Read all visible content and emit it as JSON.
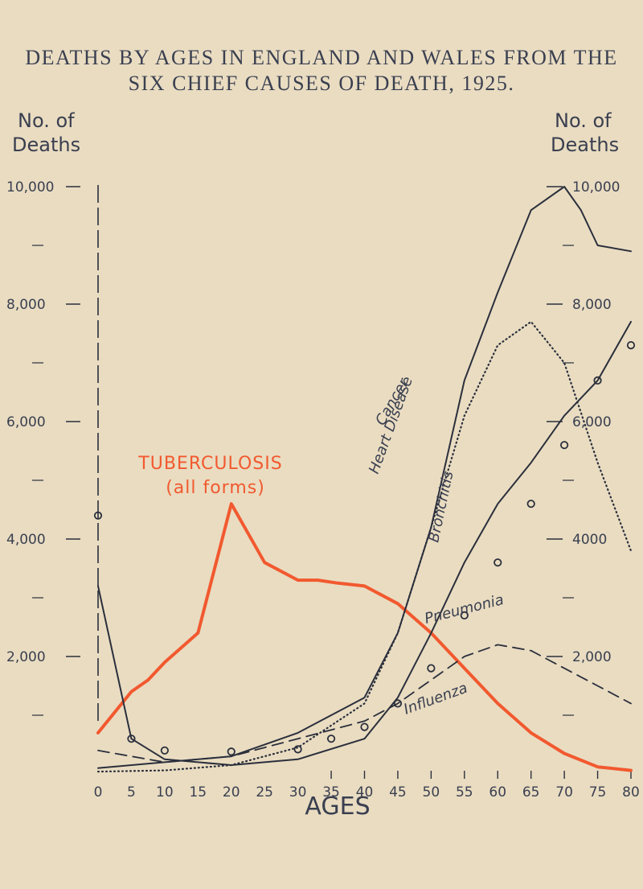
{
  "chart_data": {
    "type": "line",
    "title": "DEATHS BY AGES IN ENGLAND AND WALES FROM THE",
    "subtitle": "SIX CHIEF CAUSES OF DEATH, 1925.",
    "ylabel_left": [
      "No. of",
      "Deaths"
    ],
    "ylabel_right": [
      "No. of",
      "Deaths"
    ],
    "xlabel": "AGES",
    "x_ticks": [
      "0",
      "5",
      "10",
      "15",
      "20",
      "25",
      "30",
      "35",
      "40",
      "45",
      "50",
      "55",
      "60",
      "65",
      "70",
      "75",
      "80"
    ],
    "y_ticks_left": [
      "10,000",
      "8,000",
      "6,000",
      "4,000",
      "2,000"
    ],
    "y_ticks_right": [
      "10,000",
      "8,000",
      "6,000",
      "4000",
      "2,000"
    ],
    "xlim": [
      0,
      80
    ],
    "ylim": [
      0,
      10000
    ],
    "colors": {
      "background": "#e9dcc1",
      "ink": "#2b2f3c",
      "tuberculosis": "#f2592f"
    },
    "series": [
      {
        "name": "TUBERCULOSIS",
        "subname": "(all forms)",
        "style": "solid",
        "color": "#f2592f",
        "x": [
          0,
          5,
          7.5,
          10,
          15,
          20,
          25,
          30,
          33,
          36,
          40,
          45,
          50,
          55,
          60,
          65,
          70,
          75,
          80
        ],
        "y": [
          700,
          1400,
          1600,
          1900,
          2400,
          4600,
          3600,
          3300,
          3300,
          3250,
          3200,
          2900,
          2400,
          1800,
          1200,
          700,
          350,
          120,
          60
        ]
      },
      {
        "name": "Heart Disease",
        "style": "solid",
        "color": "#2b2f3c",
        "x": [
          0,
          10,
          20,
          30,
          40,
          45,
          50,
          55,
          60,
          65,
          70,
          72.5,
          75,
          80
        ],
        "y": [
          100,
          200,
          300,
          700,
          1300,
          2400,
          4200,
          6700,
          8200,
          9600,
          10000,
          9600,
          9000,
          8900
        ]
      },
      {
        "name": "Cancer",
        "style": "dotted",
        "color": "#2b2f3c",
        "x": [
          0,
          10,
          20,
          30,
          40,
          45,
          50,
          55,
          60,
          65,
          70,
          75,
          80
        ],
        "y": [
          40,
          60,
          150,
          450,
          1200,
          2400,
          4200,
          6100,
          7300,
          7700,
          7000,
          5300,
          3800
        ]
      },
      {
        "name": "Bronchitis",
        "style": "solid",
        "color": "#2b2f3c",
        "x": [
          0,
          5,
          10,
          20,
          30,
          40,
          45,
          50,
          55,
          60,
          65,
          70,
          75,
          80
        ],
        "y": [
          3200,
          600,
          250,
          150,
          250,
          600,
          1300,
          2400,
          3600,
          4600,
          5300,
          6100,
          6700,
          7700
        ]
      },
      {
        "name": "Pneumonia",
        "style": "circles",
        "color": "#2b2f3c",
        "x": [
          0,
          5,
          10,
          20,
          30,
          35,
          40,
          45,
          50,
          55,
          60,
          65,
          70,
          75,
          80
        ],
        "y": [
          4400,
          600,
          400,
          380,
          420,
          600,
          800,
          1200,
          1800,
          2700,
          3600,
          4600,
          5600,
          6700,
          7300
        ]
      },
      {
        "name": "Influenza",
        "style": "dashed",
        "color": "#2b2f3c",
        "x": [
          0,
          5,
          10,
          20,
          30,
          40,
          45,
          50,
          55,
          60,
          65,
          70,
          75,
          80
        ],
        "y": [
          400,
          300,
          200,
          300,
          600,
          900,
          1200,
          1600,
          2000,
          2200,
          2100,
          1800,
          1500,
          1200
        ]
      }
    ]
  }
}
